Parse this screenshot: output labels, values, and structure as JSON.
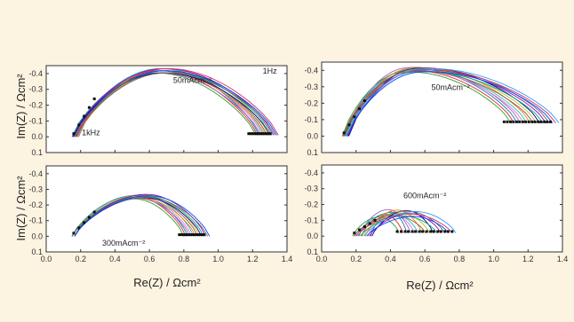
{
  "figure": {
    "background": "#fdf3e1",
    "ylabel_top": "Im(Z) / Ωcm²",
    "ylabel_bottom": "Im(Z) / Ωcm²",
    "xlabel_left": "Re(Z) / Ωcm²",
    "xlabel_right": "Re(Z) / Ωcm²"
  },
  "chart_data": [
    {
      "id": "top-left",
      "type": "line",
      "xlim": [
        0.0,
        1.4
      ],
      "ylim": [
        0.1,
        -0.45
      ],
      "x_ticks": [],
      "y_ticks": [
        "-0.4",
        "-0.3",
        "-0.2",
        "-0.1",
        "0.0",
        "0.1"
      ],
      "y_tick_values": [
        -0.4,
        -0.3,
        -0.2,
        -0.1,
        0.0,
        0.1
      ],
      "annotations": [
        {
          "text": "50mAcm⁻²",
          "x": 0.85,
          "y": -0.34
        },
        {
          "text": "1Hz",
          "x": 1.3,
          "y": -0.4
        },
        {
          "text": "1kHz",
          "x": 0.26,
          "y": -0.01
        }
      ],
      "arc_family": {
        "count": 15,
        "start_min": 0.15,
        "start_max": 0.19,
        "end_min": 1.22,
        "end_max": 1.35,
        "peak_min": 0.4,
        "peak_max": 0.44,
        "peak_x_frac": 0.45,
        "end_y": -0.01
      }
    },
    {
      "id": "top-right",
      "type": "line",
      "xlim": [
        0.0,
        1.4
      ],
      "ylim": [
        0.1,
        -0.45
      ],
      "x_ticks": [],
      "y_ticks": [
        "-0.4",
        "-0.3",
        "-0.2",
        "-0.1",
        "0.0",
        "0.1"
      ],
      "y_tick_values": [
        -0.4,
        -0.3,
        -0.2,
        -0.1,
        0.0,
        0.1
      ],
      "annotations": [
        {
          "text": "50mAcm⁻²",
          "x": 0.75,
          "y": -0.28
        }
      ],
      "arc_family": {
        "count": 16,
        "start_min": 0.12,
        "start_max": 0.16,
        "end_min": 1.1,
        "end_max": 1.38,
        "peak_min": 0.36,
        "peak_max": 0.39,
        "peak_x_frac": 0.35,
        "end_y": -0.08
      }
    },
    {
      "id": "bottom-left",
      "type": "line",
      "xlim": [
        0.0,
        1.4
      ],
      "ylim": [
        0.1,
        -0.45
      ],
      "x_ticks": [
        "0.0",
        "0.2",
        "0.4",
        "0.6",
        "0.8",
        "1.0",
        "1.2",
        "1.4"
      ],
      "x_tick_values": [
        0.0,
        0.2,
        0.4,
        0.6,
        0.8,
        1.0,
        1.2,
        1.4
      ],
      "y_ticks": [
        "-0.4",
        "-0.3",
        "-0.2",
        "-0.1",
        "0.0",
        "0.1"
      ],
      "y_tick_values": [
        -0.4,
        -0.3,
        -0.2,
        -0.1,
        0.0,
        0.1
      ],
      "annotations": [
        {
          "text": "300mAcm⁻²",
          "x": 0.45,
          "y": 0.06
        }
      ],
      "arc_family": {
        "count": 14,
        "start_min": 0.15,
        "start_max": 0.18,
        "end_min": 0.8,
        "end_max": 0.95,
        "peak_min": 0.24,
        "peak_max": 0.27,
        "peak_x_frac": 0.55,
        "end_y": 0.0
      }
    },
    {
      "id": "bottom-right",
      "type": "line",
      "xlim": [
        0.0,
        1.4
      ],
      "ylim": [
        0.1,
        -0.45
      ],
      "x_ticks": [
        "0.0",
        "0.2",
        "0.4",
        "0.6",
        "0.8",
        "1.0",
        "1.2",
        "1.4"
      ],
      "x_tick_values": [
        0.0,
        0.2,
        0.4,
        0.6,
        0.8,
        1.0,
        1.2,
        1.4
      ],
      "y_ticks": [
        "-0.4",
        "-0.3",
        "-0.2",
        "-0.1",
        "0.0",
        "0.1"
      ],
      "y_tick_values": [
        -0.4,
        -0.3,
        -0.2,
        -0.1,
        0.0,
        0.1
      ],
      "annotations": [
        {
          "text": "600mAcm⁻²",
          "x": 0.6,
          "y": -0.24
        }
      ],
      "arc_family": {
        "count": 16,
        "start_min": 0.18,
        "start_max": 0.3,
        "end_min": 0.45,
        "end_max": 0.78,
        "peak_min": 0.11,
        "peak_max": 0.16,
        "peak_x_frac": 0.55,
        "end_y": -0.02
      }
    }
  ],
  "series_colors": [
    "#2ca02c",
    "#d62728",
    "#1f77b4",
    "#9467bd",
    "#e377c2",
    "#17becf",
    "#ff7f0e",
    "#8c564b",
    "#bcbd22",
    "#000080",
    "#00aa88",
    "#aa00aa",
    "#666666",
    "#0044ff",
    "#cc3366",
    "#3399ff"
  ]
}
